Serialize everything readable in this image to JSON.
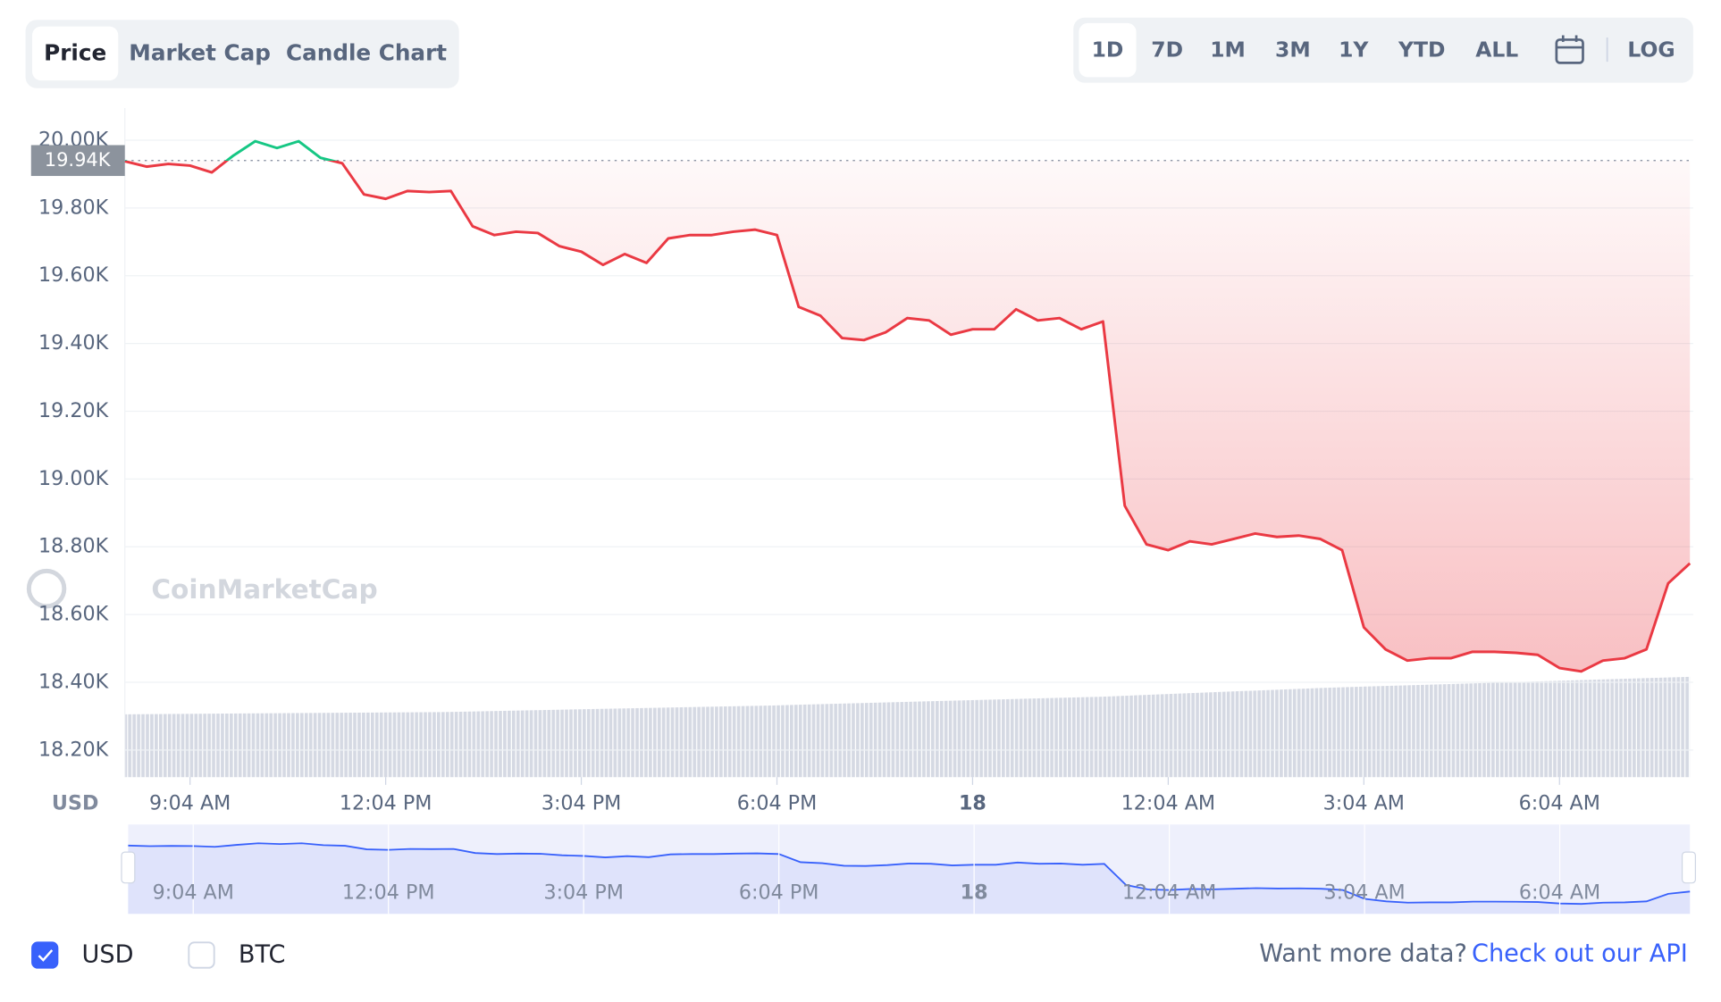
{
  "tabs": [
    "Price",
    "Market Cap",
    "Candle Chart"
  ],
  "ranges": [
    "1D",
    "7D",
    "1M",
    "3M",
    "1Y",
    "YTD",
    "ALL"
  ],
  "log_button": "LOG",
  "watermark": "CoinMarketCap",
  "chart_data": {
    "type": "line",
    "y_label": "USD",
    "categories": [
      null,
      null,
      null,
      "9:04 AM",
      null,
      null,
      null,
      null,
      null,
      null,
      null,
      null,
      "12:04 PM",
      null,
      null,
      null,
      null,
      null,
      null,
      null,
      null,
      "3:04 PM",
      null,
      null,
      null,
      null,
      null,
      null,
      null,
      null,
      "6:04 PM",
      null,
      null,
      null,
      null,
      null,
      null,
      null,
      null,
      "18",
      null,
      null,
      null,
      null,
      null,
      null,
      null,
      null,
      "12:04 AM",
      null,
      null,
      null,
      null,
      null,
      null,
      null,
      null,
      "3:04 AM",
      null,
      null,
      null,
      null,
      null,
      null,
      null,
      null,
      "6:04 AM",
      null,
      null,
      null,
      null,
      null,
      null
    ],
    "series": [
      {
        "name": "USD",
        "color": "#ea3943",
        "up_color": "#16c784",
        "values": [
          19938,
          19922,
          19930,
          19925,
          19905,
          19955,
          19997,
          19977,
          19997,
          19948,
          19932,
          19840,
          19827,
          19850,
          19847,
          19850,
          19746,
          19720,
          19730,
          19726,
          19687,
          19671,
          19632,
          19664,
          19638,
          19710,
          19720,
          19720,
          19730,
          19736,
          19720,
          19508,
          19482,
          19416,
          19410,
          19433,
          19475,
          19468,
          19426,
          19442,
          19442,
          19501,
          19468,
          19475,
          19442,
          19465,
          18921,
          18807,
          18790,
          18816,
          18807,
          18823,
          18839,
          18829,
          18833,
          18823,
          18790,
          18562,
          18497,
          18464,
          18471,
          18471,
          18490,
          18490,
          18487,
          18481,
          18442,
          18432,
          18464,
          18471,
          18497,
          18692,
          18751
        ]
      }
    ],
    "reference": {
      "value": 19940,
      "label": "19.94K"
    },
    "ylim": [
      18120,
      20095
    ],
    "yticks": [
      {
        "value": 18200,
        "label": "18.20K"
      },
      {
        "value": 18400,
        "label": "18.40K"
      },
      {
        "value": 18600,
        "label": "18.60K"
      },
      {
        "value": 18800,
        "label": "18.80K"
      },
      {
        "value": 19000,
        "label": "19.00K"
      },
      {
        "value": 19200,
        "label": "19.20K"
      },
      {
        "value": 19400,
        "label": "19.40K"
      },
      {
        "value": 19600,
        "label": "19.60K"
      },
      {
        "value": 19800,
        "label": "19.80K"
      },
      {
        "value": 20000,
        "label": "20.00K"
      }
    ],
    "grid": true
  },
  "footer": {
    "currencies": [
      {
        "label": "USD",
        "checked": true
      },
      {
        "label": "BTC",
        "checked": false
      }
    ],
    "prompt": "Want more data?",
    "link": "Check out our API"
  }
}
